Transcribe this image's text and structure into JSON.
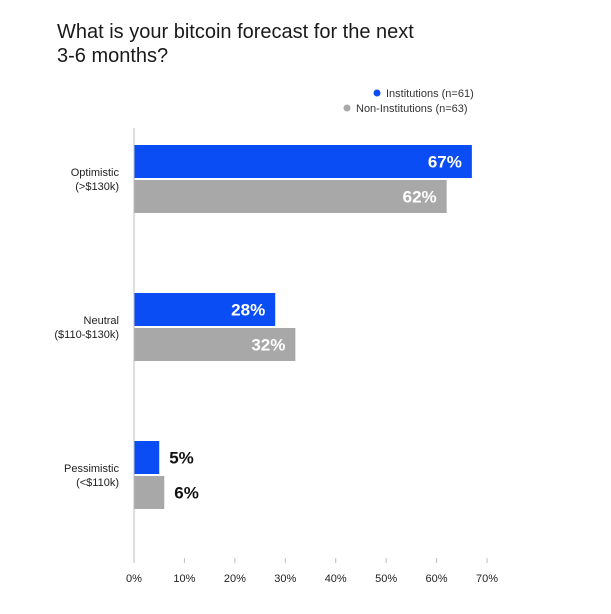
{
  "chart_data": {
    "type": "bar",
    "orientation": "horizontal",
    "title_lines": [
      "What is your bitcoin forecast for the next",
      "3-6 months?"
    ],
    "categories": [
      {
        "name": "Optimistic",
        "range": "(>$130k)"
      },
      {
        "name": "Neutral",
        "range": "($110-$130k)"
      },
      {
        "name": "Pessimistic",
        "range": "(<$110k)"
      }
    ],
    "series": [
      {
        "name": "Institutions (n=61)",
        "color": "#0a4df5",
        "values": [
          67,
          28,
          5
        ],
        "labels": [
          "67%",
          "28%",
          "5%"
        ]
      },
      {
        "name": "Non-Institutions (n=63)",
        "color": "#a8a8a8",
        "values": [
          62,
          32,
          6
        ],
        "labels": [
          "62%",
          "32%",
          "6%"
        ]
      }
    ],
    "x_ticks": [
      {
        "value": 0,
        "label": "0%"
      },
      {
        "value": 10,
        "label": "10%"
      },
      {
        "value": 20,
        "label": "20%"
      },
      {
        "value": 30,
        "label": "30%"
      },
      {
        "value": 40,
        "label": "40%"
      },
      {
        "value": 50,
        "label": "50%"
      },
      {
        "value": 60,
        "label": "60%"
      },
      {
        "value": 70,
        "label": "70%"
      }
    ],
    "xlim": [
      0,
      70
    ],
    "legend_position": "top-right",
    "grid": false
  }
}
